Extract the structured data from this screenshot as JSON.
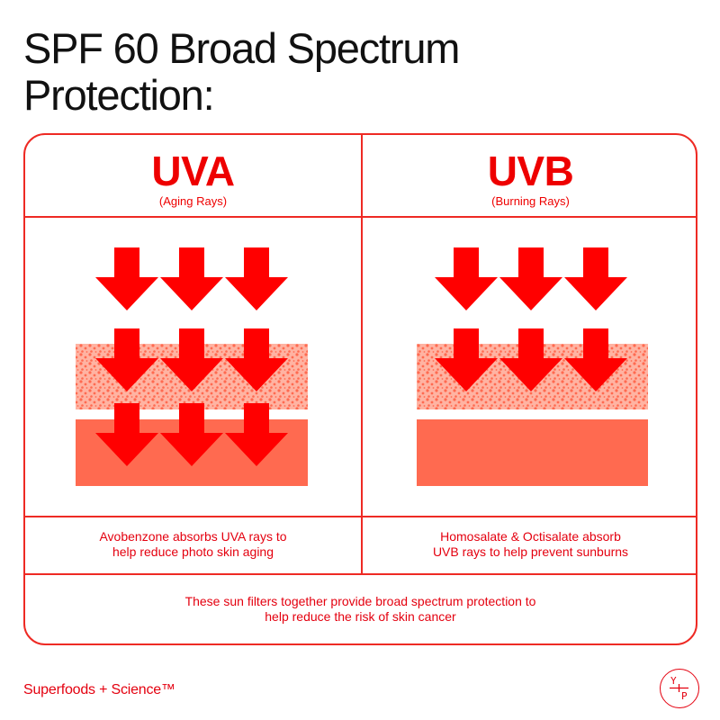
{
  "title": {
    "line1": "SPF 60 Broad Spectrum",
    "line2": "Protection:"
  },
  "uva": {
    "heading": "UVA",
    "subheading": "(Aging Rays)",
    "caption_line1": "Avobenzone absorbs UVA rays to",
    "caption_line2": "help reduce photo skin aging"
  },
  "uvb": {
    "heading": "UVB",
    "subheading": "(Burning Rays)",
    "caption_line1": "Homosalate & Octisalate absorb",
    "caption_line2": "UVB rays to help prevent sunburns"
  },
  "summary": {
    "line1": "These sun filters together provide broad spectrum protection to",
    "line2": "help reduce the risk of skin cancer"
  },
  "brand": {
    "name": "Superfoods + Science™"
  },
  "logo": {
    "letters": [
      "Y",
      "P"
    ]
  },
  "icons": {
    "arrow": "down-arrow-icon",
    "sunscreen_layer": "dotted-layer",
    "skin_layer": "solid-layer"
  },
  "colors": {
    "accent_red": "#ee0000",
    "border_red": "#ee2a24",
    "skin_coral": "#ff6a50",
    "dotted_bg": "#ffb3a2",
    "dot_color": "#ff6a50"
  }
}
